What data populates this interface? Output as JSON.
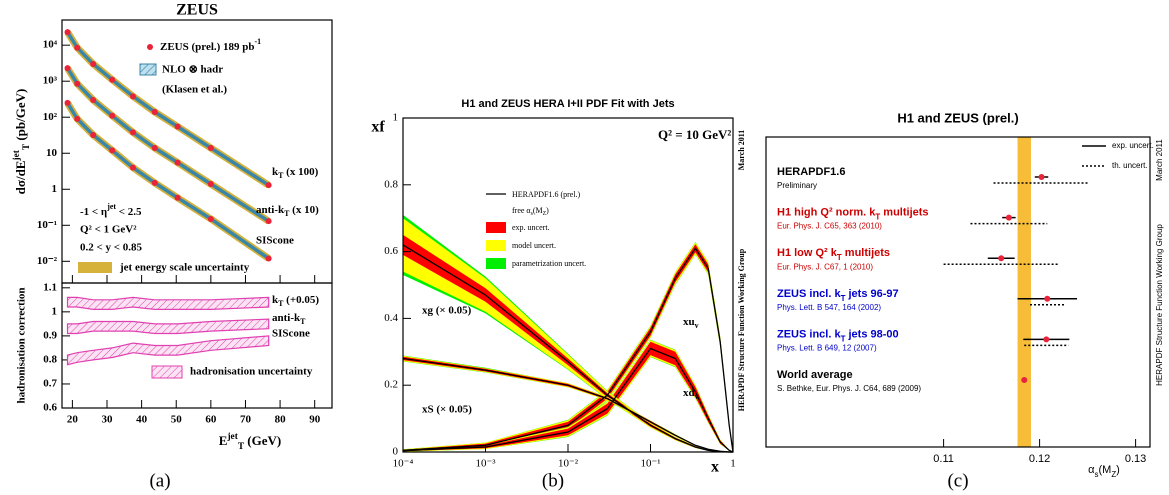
{
  "captions": [
    "(a)",
    "(b)",
    "(c)"
  ],
  "chart_data": [
    {
      "type": "scatter",
      "title": "ZEUS",
      "ylabel": [
        "dσ/dE",
        {
          "text": "jet",
          "sup": true
        },
        {
          "text": "T",
          "sub": true
        },
        " (pb/GeV)"
      ],
      "log_y": true,
      "xlim": [
        17,
        95
      ],
      "xticks": [
        20,
        30,
        40,
        50,
        60,
        70,
        80,
        90
      ],
      "ylim": [
        0.0025,
        50000
      ],
      "yticks": [
        {
          "value": 0.01,
          "label": "10⁻²"
        },
        {
          "value": 0.1,
          "label": "10⁻¹"
        },
        1,
        10,
        {
          "value": 100,
          "label": "10²"
        },
        {
          "value": 1000,
          "label": "10³"
        },
        {
          "value": 10000,
          "label": "10⁴"
        }
      ],
      "x": [
        18.6,
        21.4,
        26,
        31.5,
        37.5,
        43.8,
        50.4,
        60,
        76.7
      ],
      "series": [
        {
          "name": [
            "k",
            {
              "text": "T",
              "sub": true
            },
            " (x 100)"
          ],
          "values": [
            23000,
            8500,
            3000,
            1100,
            380,
            140,
            55,
            14,
            1.3
          ]
        },
        {
          "name": [
            "anti-k",
            {
              "text": "T",
              "sub": true
            },
            " (x 10)"
          ],
          "values": [
            2300,
            850,
            300,
            110,
            38,
            14,
            5.5,
            1.4,
            0.13
          ]
        },
        {
          "name": "SIScone",
          "values": [
            250,
            90,
            32,
            12,
            4,
            1.5,
            0.58,
            0.15,
            0.012
          ]
        }
      ],
      "data_label": [
        "ZEUS (prel.) 189 pb",
        {
          "text": "-1",
          "sup": true
        }
      ],
      "theory_label": "NLO ⊗ hadr",
      "theory_ref": "(Klasen et al.)",
      "cuts": [
        [
          "-1 < η",
          {
            "text": "jet",
            "sup": true
          },
          " < 2.5"
        ],
        "Q² < 1 GeV²",
        "0.2 < y < 0.85"
      ],
      "jes_label": "jet energy scale uncertainty",
      "point_color": "#e8233a",
      "theory_color": "#3a86a8",
      "jes_color": "#d6b23a"
    },
    {
      "type": "band",
      "ylabel": "hadronisation correction",
      "xlabel": [
        "E",
        {
          "text": "jet",
          "sup": true
        },
        {
          "text": "T",
          "sub": true
        },
        "  (GeV)"
      ],
      "xlim": [
        17,
        95
      ],
      "xticks": [
        20,
        30,
        40,
        50,
        60,
        70,
        80,
        90
      ],
      "ylim": [
        0.6,
        1.12
      ],
      "yticks": [
        0.6,
        0.7,
        0.8,
        0.9,
        1,
        1.1
      ],
      "x": [
        18.6,
        21.4,
        26,
        31.5,
        37.5,
        43.8,
        50.4,
        60,
        76.7
      ],
      "series": [
        {
          "name": [
            "k",
            {
              "text": "T",
              "sub": true
            },
            " (+0.05)"
          ],
          "values": [
            1.04,
            1.04,
            1.03,
            1.03,
            1.04,
            1.03,
            1.03,
            1.03,
            1.04
          ],
          "error": 0.02
        },
        {
          "name": [
            "anti-k",
            {
              "text": "T",
              "sub": true
            }
          ],
          "values": [
            0.93,
            0.93,
            0.94,
            0.94,
            0.94,
            0.93,
            0.93,
            0.94,
            0.95
          ],
          "error": 0.02
        },
        {
          "name": "SIScone",
          "values": [
            0.8,
            0.81,
            0.82,
            0.83,
            0.85,
            0.84,
            0.84,
            0.86,
            0.88
          ],
          "error": 0.02
        }
      ],
      "color": "#e040b0",
      "legend": "hadronisation uncertainty"
    },
    {
      "type": "line",
      "title": "H1 and ZEUS HERA I+II PDF Fit with Jets",
      "annotation": "Q² = 10 GeV²",
      "ylabel": "xf",
      "xlabel": "x",
      "log_x": true,
      "xlim": [
        0.0001,
        1
      ],
      "xticks": [
        {
          "value": 0.0001,
          "label": "10⁻⁴"
        },
        {
          "value": 0.001,
          "label": "10⁻³"
        },
        {
          "value": 0.01,
          "label": "10⁻²"
        },
        {
          "value": 0.1,
          "label": "10⁻¹"
        },
        1
      ],
      "ylim": [
        0,
        1
      ],
      "yticks": [
        0,
        0.2,
        0.4,
        0.6,
        0.8,
        1
      ],
      "legend_line": "HERAPDF1.6 (prel.)",
      "legend_line2": [
        "free α",
        {
          "text": "s",
          "sub": true
        },
        "(M",
        {
          "text": "Z",
          "sub": true
        },
        ")"
      ],
      "bands": [
        {
          "name": "exp. uncert.",
          "color": "#ff0000"
        },
        {
          "name": "model uncert.",
          "color": "#ffff00"
        },
        {
          "name": "parametrization uncert.",
          "color": "#00ee00"
        }
      ],
      "side_texts": [
        "March 2011",
        "HERAPDF Structure Function Working Group"
      ],
      "x": [
        0.0001,
        0.001,
        0.01,
        0.03,
        0.1,
        0.2,
        0.35,
        0.5,
        0.7,
        0.9,
        1
      ],
      "series": [
        {
          "name": [
            "xu",
            {
              "text": "v",
              "sub": true
            }
          ],
          "values": [
            0.005,
            0.02,
            0.08,
            0.17,
            0.36,
            0.52,
            0.61,
            0.55,
            0.33,
            0.08,
            0
          ],
          "errors": [
            [
              0.002,
              0.005,
              0.01,
              0.01,
              0.012,
              0.012,
              0.012,
              0.012,
              0.01,
              0.004,
              0
            ],
            [
              0.001,
              0.003,
              0.005,
              0.005,
              0.005,
              0.006,
              0.006,
              0.006,
              0.005,
              0.002,
              0
            ],
            [
              0,
              0,
              0.001,
              0.001,
              0.001,
              0.001,
              0.001,
              0.001,
              0.001,
              0,
              0
            ]
          ]
        },
        {
          "name": [
            "xd",
            {
              "text": "v",
              "sub": true
            }
          ],
          "values": [
            0.004,
            0.015,
            0.06,
            0.13,
            0.31,
            0.28,
            0.18,
            0.1,
            0.03,
            0.005,
            0
          ],
          "errors": [
            [
              0.002,
              0.004,
              0.01,
              0.015,
              0.02,
              0.02,
              0.015,
              0.01,
              0.005,
              0.001,
              0
            ],
            [
              0.001,
              0.002,
              0.004,
              0.005,
              0.005,
              0.005,
              0.004,
              0.003,
              0.002,
              0,
              0
            ],
            [
              0,
              0,
              0.001,
              0.001,
              0.001,
              0.001,
              0.001,
              0,
              0,
              0,
              0
            ]
          ]
        },
        {
          "name": "xg (× 0.05)",
          "values": [
            0.62,
            0.47,
            0.27,
            0.17,
            0.08,
            0.04,
            0.015,
            0.005,
            0.001,
            0,
            0
          ],
          "errors": [
            [
              0.03,
              0.02,
              0.01,
              0.006,
              0.004,
              0.003,
              0.002,
              0.001,
              0,
              0,
              0
            ],
            [
              0.05,
              0.03,
              0.012,
              0.006,
              0.003,
              0.002,
              0.001,
              0,
              0,
              0,
              0
            ],
            [
              0.01,
              0.005,
              0.002,
              0.001,
              0,
              0,
              0,
              0,
              0,
              0,
              0
            ]
          ]
        },
        {
          "name": "xS (× 0.05)",
          "values": [
            0.28,
            0.245,
            0.2,
            0.16,
            0.09,
            0.05,
            0.02,
            0.008,
            0.002,
            0,
            0
          ],
          "errors": [
            [
              0.005,
              0.004,
              0.004,
              0.003,
              0.003,
              0.002,
              0.001,
              0,
              0,
              0,
              0
            ],
            [
              0.003,
              0.002,
              0.002,
              0.002,
              0.001,
              0.001,
              0,
              0,
              0,
              0,
              0
            ],
            [
              0.001,
              0.001,
              0,
              0,
              0,
              0,
              0,
              0,
              0,
              0,
              0
            ]
          ]
        }
      ],
      "color": "#000000"
    },
    {
      "type": "dot",
      "title": "H1 and ZEUS (prel.)",
      "xlabel": [
        "α",
        {
          "text": "s",
          "sub": true
        },
        "(M",
        {
          "text": "Z",
          "sub": true
        },
        ")"
      ],
      "xlim": [
        0.0915,
        0.1315
      ],
      "xticks": [
        0.11,
        0.12,
        0.13
      ],
      "legend": [
        "exp. uncert.",
        "th. uncert."
      ],
      "side_texts": [
        "March 2011",
        "HERAPDF Structure Function Working Group"
      ],
      "rows": [
        {
          "name": "HERAPDF1.6",
          "reference": "Preliminary",
          "color": "#000000",
          "value": 0.1202,
          "exp": 0.0007,
          "th": 0.005
        },
        {
          "name": [
            "H1 high Q² norm. k",
            {
              "text": "T",
              "sub": true
            },
            " multijets"
          ],
          "reference": "Eur. Phys. J. C65, 363 (2010)",
          "color": "#cc0000",
          "value": 0.1168,
          "exp": 0.0007,
          "th": 0.004
        },
        {
          "name": [
            "H1 low Q² k",
            {
              "text": "T",
              "sub": true
            },
            " multijets"
          ],
          "reference": "Eur. Phys. J. C67, 1 (2010)",
          "color": "#cc0000",
          "value": 0.116,
          "exp": 0.0014,
          "th": 0.006
        },
        {
          "name": [
            "ZEUS incl. k",
            {
              "text": "T",
              "sub": true
            },
            " jets 96-97"
          ],
          "reference": "Phys. Lett. B 547, 164 (2002)",
          "color": "#0000cc",
          "value": 0.1208,
          "exp": 0.0031,
          "th": 0.0018
        },
        {
          "name": [
            "ZEUS incl. k",
            {
              "text": "T",
              "sub": true
            },
            " jets 98-00"
          ],
          "reference": "Phys. Lett. B 649, 12 (2007)",
          "color": "#0000cc",
          "value": 0.1207,
          "exp": 0.0024,
          "th": 0.0023
        },
        {
          "name": "World average",
          "reference": "S. Bethke, Eur. Phys. J. C64, 689 (2009)",
          "color": "#000000",
          "value": 0.1184,
          "error": 0.0007
        }
      ],
      "band_color": "#f7bd38",
      "point_color": "#e8233a"
    }
  ]
}
